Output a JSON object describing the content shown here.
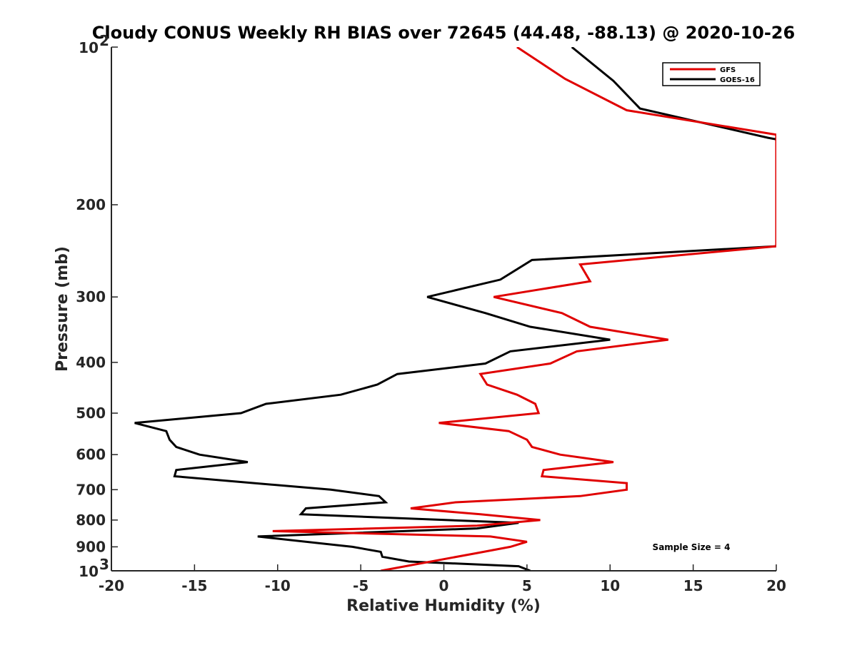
{
  "chart_data": {
    "type": "line",
    "title": "Cloudy CONUS Weekly RH BIAS over 72645 (44.48, -88.13) @ 2020-10-26",
    "xlabel": "Relative Humidity (%)",
    "ylabel": "Pressure (mb)",
    "xlim": [
      -20,
      20
    ],
    "ylim": [
      1000,
      100
    ],
    "yscale": "log",
    "y_reversed": true,
    "grid": false,
    "legend_position": "top-right",
    "xticks": [
      {
        "value": -20,
        "label": "-20"
      },
      {
        "value": -15,
        "label": "-15"
      },
      {
        "value": -10,
        "label": "-10"
      },
      {
        "value": -5,
        "label": "-5"
      },
      {
        "value": 0,
        "label": "0"
      },
      {
        "value": 5,
        "label": "5"
      },
      {
        "value": 10,
        "label": "10"
      },
      {
        "value": 15,
        "label": "15"
      },
      {
        "value": 20,
        "label": "20"
      }
    ],
    "yticks": [
      {
        "value": 100,
        "label": "10",
        "exp": "2"
      },
      {
        "value": 200,
        "label": "200"
      },
      {
        "value": 300,
        "label": "300"
      },
      {
        "value": 400,
        "label": "400"
      },
      {
        "value": 500,
        "label": "500"
      },
      {
        "value": 600,
        "label": "600"
      },
      {
        "value": 700,
        "label": "700"
      },
      {
        "value": 800,
        "label": "800"
      },
      {
        "value": 900,
        "label": "900"
      },
      {
        "value": 1000,
        "label": "10",
        "exp": "3"
      }
    ],
    "annotation": "Sample Size = 4",
    "series": [
      {
        "name": "GFS",
        "color": "#e00000",
        "points": [
          {
            "x": 4.4,
            "y": 100
          },
          {
            "x": 7.3,
            "y": 115
          },
          {
            "x": 11.0,
            "y": 132
          },
          {
            "x": 20.0,
            "y": 147
          },
          {
            "x": 20.0,
            "y": 240
          },
          {
            "x": 8.2,
            "y": 260
          },
          {
            "x": 8.8,
            "y": 280
          },
          {
            "x": 3.0,
            "y": 300
          },
          {
            "x": 7.1,
            "y": 322
          },
          {
            "x": 8.8,
            "y": 342
          },
          {
            "x": 13.5,
            "y": 362
          },
          {
            "x": 8.0,
            "y": 381
          },
          {
            "x": 6.4,
            "y": 402
          },
          {
            "x": 2.2,
            "y": 421
          },
          {
            "x": 2.6,
            "y": 441
          },
          {
            "x": 4.4,
            "y": 461
          },
          {
            "x": 5.5,
            "y": 480
          },
          {
            "x": 5.7,
            "y": 500
          },
          {
            "x": -0.3,
            "y": 522
          },
          {
            "x": 3.9,
            "y": 541
          },
          {
            "x": 5.0,
            "y": 562
          },
          {
            "x": 5.3,
            "y": 580
          },
          {
            "x": 7.0,
            "y": 600
          },
          {
            "x": 10.2,
            "y": 620
          },
          {
            "x": 6.0,
            "y": 642
          },
          {
            "x": 5.9,
            "y": 660
          },
          {
            "x": 11.0,
            "y": 680
          },
          {
            "x": 11.0,
            "y": 700
          },
          {
            "x": 8.2,
            "y": 720
          },
          {
            "x": 0.7,
            "y": 740
          },
          {
            "x": -2.0,
            "y": 760
          },
          {
            "x": 2.2,
            "y": 780
          },
          {
            "x": 5.8,
            "y": 800
          },
          {
            "x": 2.0,
            "y": 820
          },
          {
            "x": -10.3,
            "y": 840
          },
          {
            "x": 2.8,
            "y": 860
          },
          {
            "x": 5.0,
            "y": 880
          },
          {
            "x": 4.0,
            "y": 900
          },
          {
            "x": 2.0,
            "y": 925
          },
          {
            "x": -3.8,
            "y": 1000
          }
        ]
      },
      {
        "name": "GOES-16",
        "color": "#000000",
        "points": [
          {
            "x": 7.7,
            "y": 100
          },
          {
            "x": 10.2,
            "y": 116
          },
          {
            "x": 11.8,
            "y": 131
          },
          {
            "x": 19.5,
            "y": 149
          },
          {
            "x": 20.0,
            "y": 150
          },
          {
            "x": 20.0,
            "y": 240
          },
          {
            "x": 5.3,
            "y": 255
          },
          {
            "x": 3.4,
            "y": 278
          },
          {
            "x": -1.0,
            "y": 300
          },
          {
            "x": 2.5,
            "y": 322
          },
          {
            "x": 5.2,
            "y": 342
          },
          {
            "x": 10.0,
            "y": 362
          },
          {
            "x": 4.0,
            "y": 381
          },
          {
            "x": 2.5,
            "y": 402
          },
          {
            "x": -2.8,
            "y": 421
          },
          {
            "x": -4.0,
            "y": 441
          },
          {
            "x": -6.2,
            "y": 461
          },
          {
            "x": -10.7,
            "y": 480
          },
          {
            "x": -12.2,
            "y": 500
          },
          {
            "x": -18.6,
            "y": 522
          },
          {
            "x": -16.7,
            "y": 541
          },
          {
            "x": -16.5,
            "y": 562
          },
          {
            "x": -16.1,
            "y": 580
          },
          {
            "x": -14.7,
            "y": 600
          },
          {
            "x": -11.8,
            "y": 620
          },
          {
            "x": -16.1,
            "y": 642
          },
          {
            "x": -16.2,
            "y": 660
          },
          {
            "x": -6.8,
            "y": 700
          },
          {
            "x": -3.9,
            "y": 720
          },
          {
            "x": -3.5,
            "y": 740
          },
          {
            "x": -8.3,
            "y": 760
          },
          {
            "x": -8.6,
            "y": 780
          },
          {
            "x": 4.5,
            "y": 810
          },
          {
            "x": 2.0,
            "y": 830
          },
          {
            "x": -11.2,
            "y": 860
          },
          {
            "x": -5.5,
            "y": 900
          },
          {
            "x": -3.8,
            "y": 920
          },
          {
            "x": -3.7,
            "y": 940
          },
          {
            "x": -2.1,
            "y": 960
          },
          {
            "x": 4.5,
            "y": 980
          },
          {
            "x": 5.2,
            "y": 1000
          }
        ]
      }
    ]
  }
}
